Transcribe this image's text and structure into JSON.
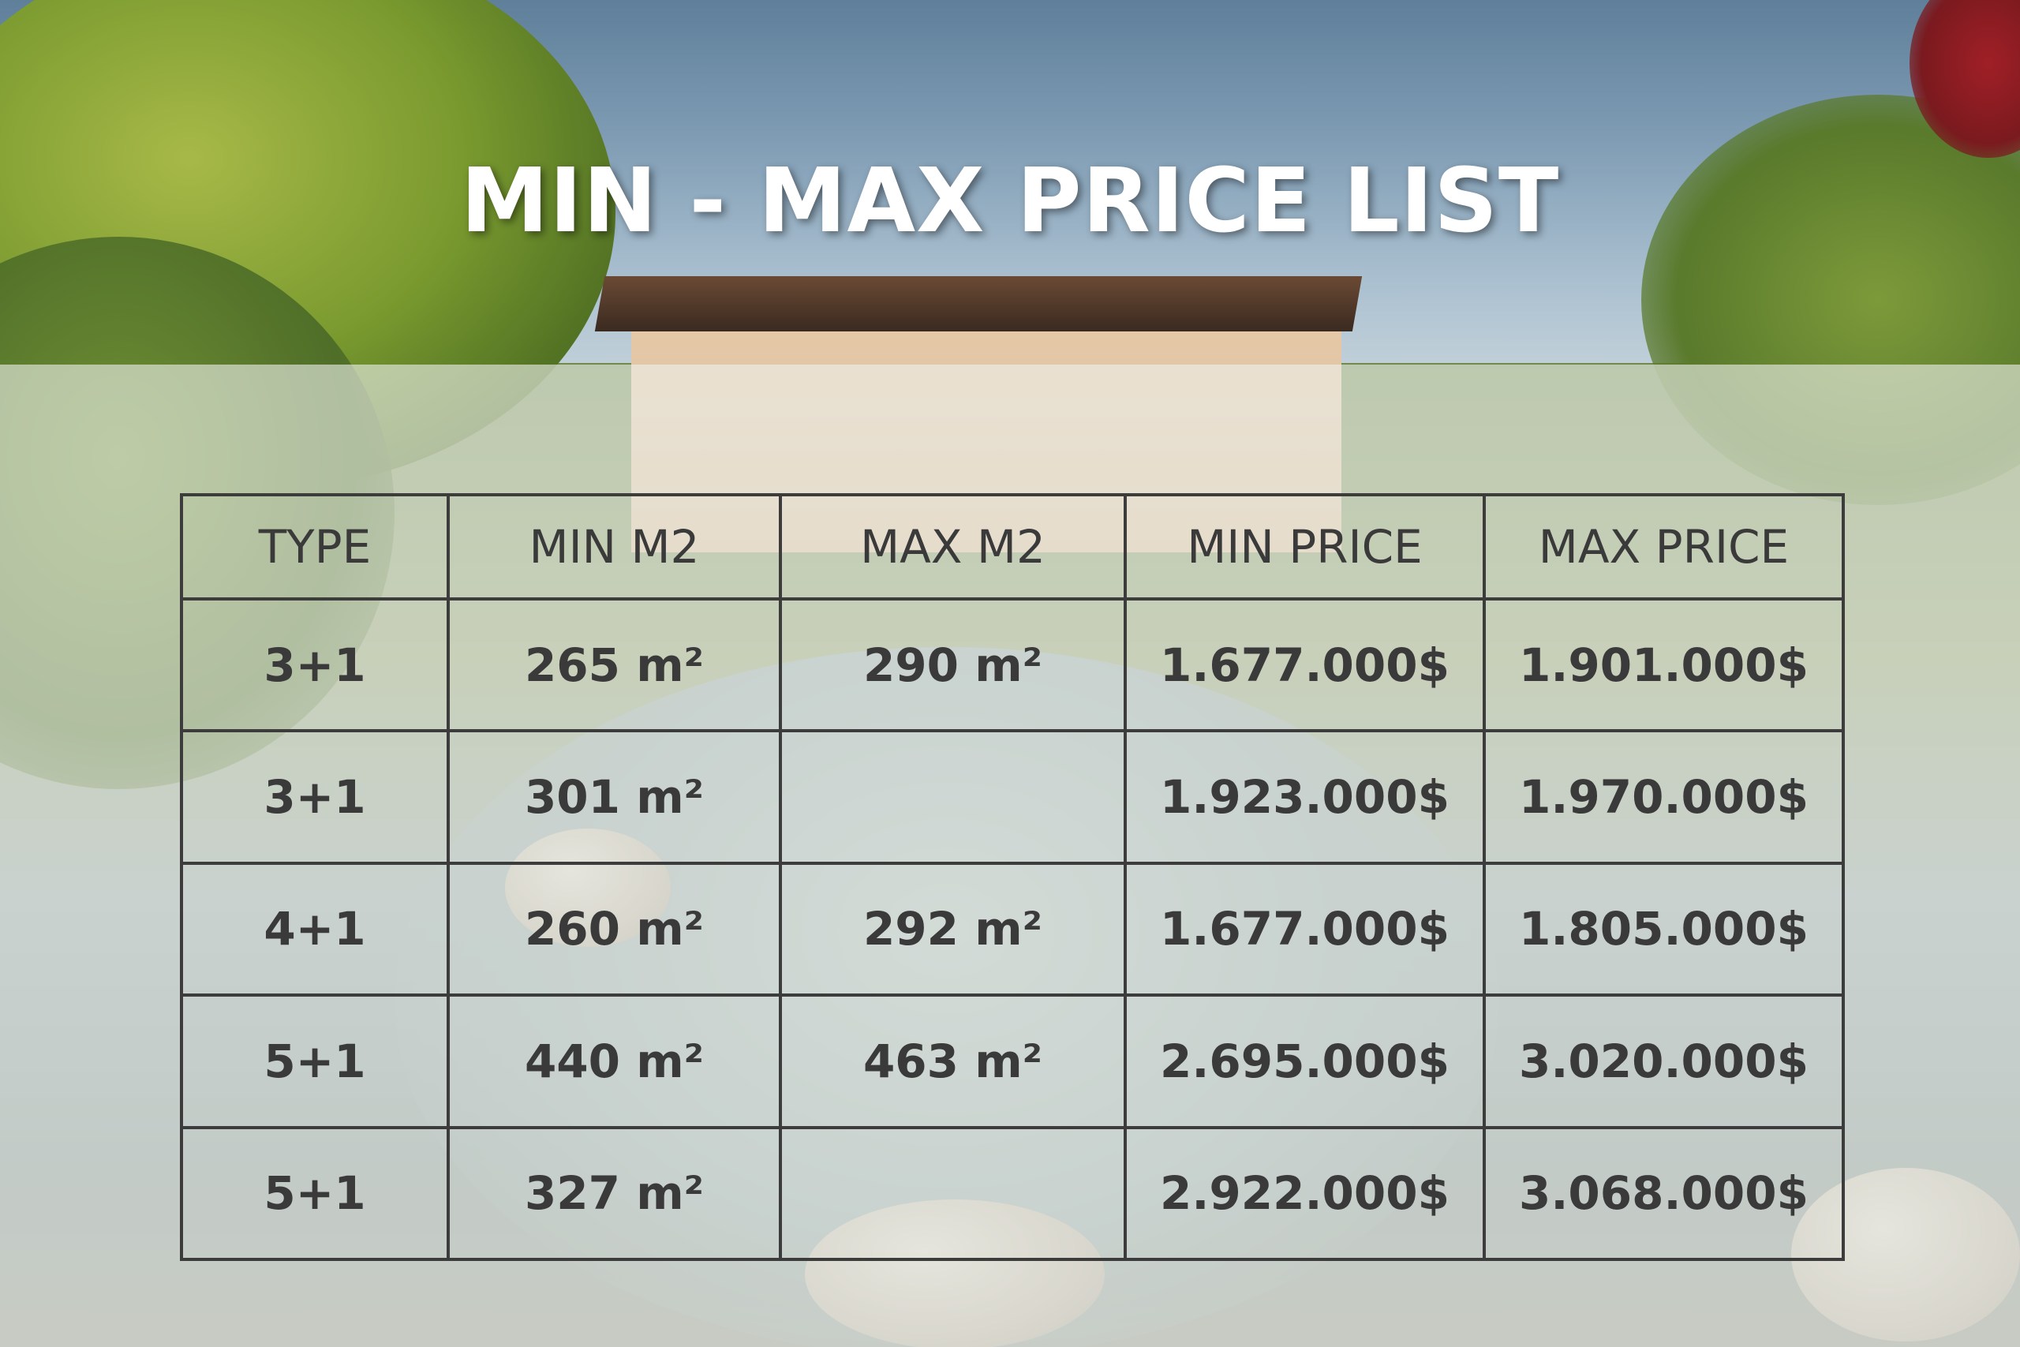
{
  "title": "MIN - MAX PRICE LIST",
  "table": {
    "headers": [
      "TYPE",
      "MIN M2",
      "MAX M2",
      "MIN PRICE",
      "MAX PRICE"
    ],
    "rows": [
      [
        "3+1",
        "265 m²",
        "290 m²",
        "1.677.000$",
        "1.901.000$"
      ],
      [
        "3+1",
        "301 m²",
        "",
        "1.923.000$",
        "1.970.000$"
      ],
      [
        "4+1",
        "260 m²",
        "292 m²",
        "1.677.000$",
        "1.805.000$"
      ],
      [
        "5+1",
        "440 m²",
        "463 m²",
        "2.695.000$",
        "3.020.000$"
      ],
      [
        "5+1",
        "327 m²",
        "",
        "2.922.000$",
        "3.068.000$"
      ]
    ]
  }
}
